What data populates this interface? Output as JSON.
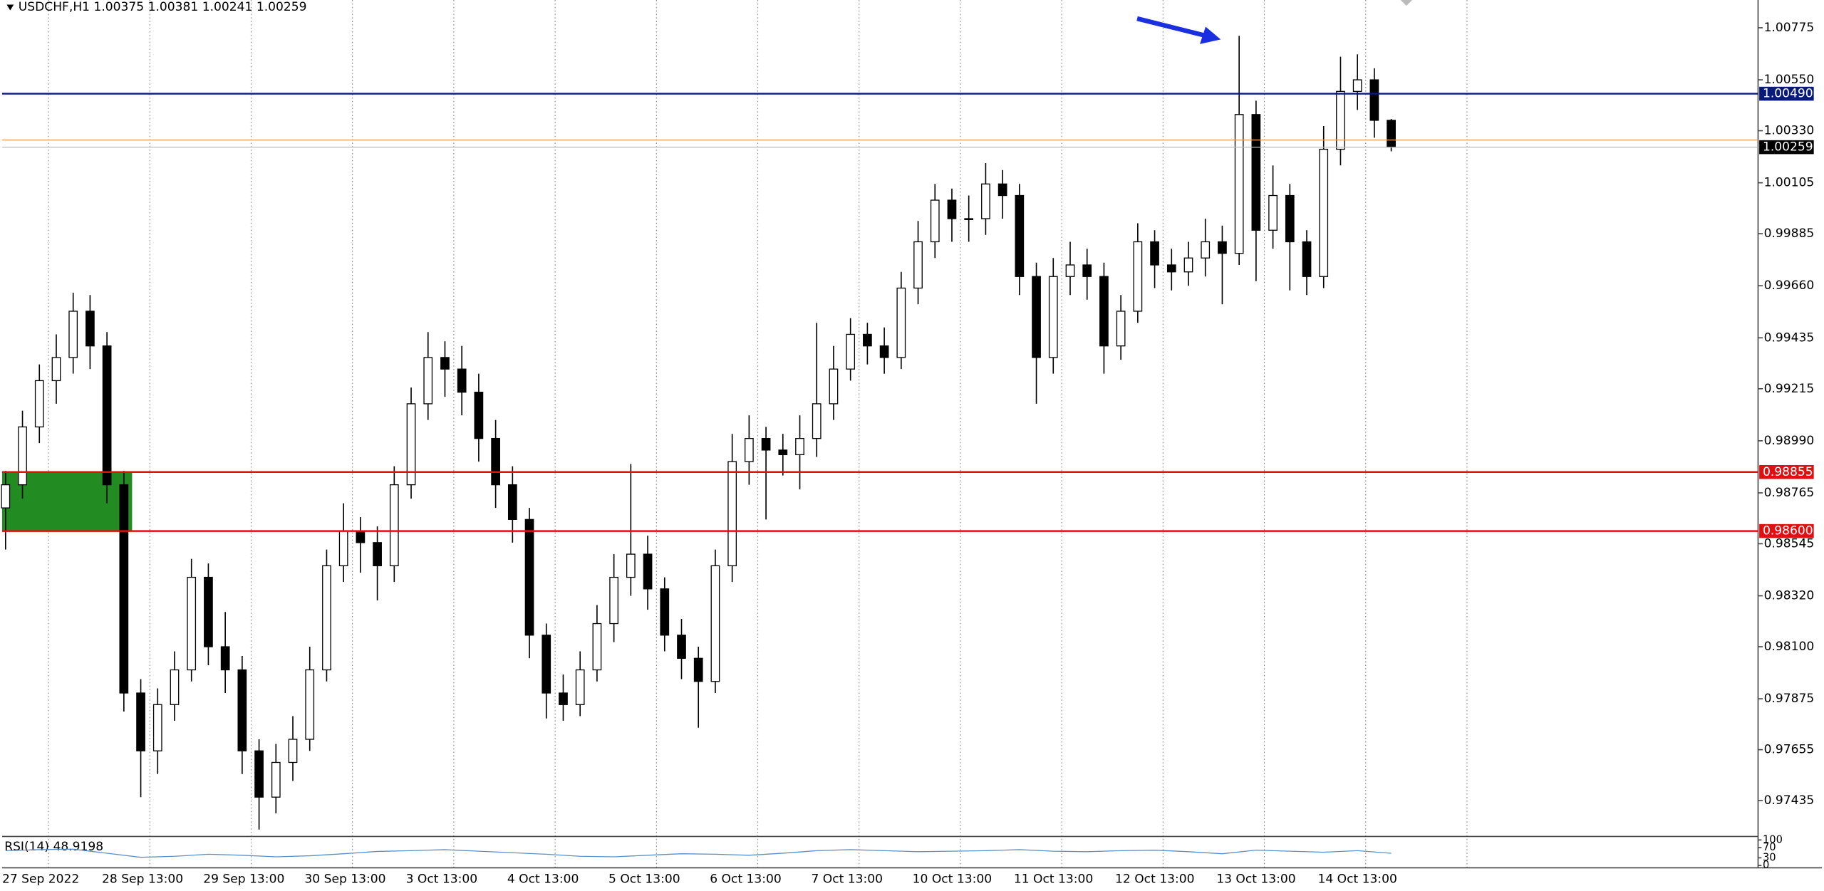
{
  "chart_data": {
    "type": "candlestick",
    "title": "USDCHF,H1",
    "categories": [
      "27 Sep 2022",
      "28 Sep 13:00",
      "29 Sep 13:00",
      "30 Sep 13:00",
      "3 Oct 13:00",
      "4 Oct 13:00",
      "5 Oct 13:00",
      "6 Oct 13:00",
      "7 Oct 13:00",
      "10 Oct 13:00",
      "11 Oct 13:00",
      "12 Oct 13:00",
      "13 Oct 13:00",
      "14 Oct 13:00"
    ],
    "open": [
      0.987,
      0.988,
      0.9905,
      0.9925,
      0.9935,
      0.9955,
      0.994,
      0.988,
      0.979,
      0.9765,
      0.9785,
      0.98,
      0.984,
      0.981,
      0.98,
      0.9765,
      0.9745,
      0.976,
      0.977,
      0.98,
      0.9845,
      0.986,
      0.9855,
      0.9845,
      0.988,
      0.9915,
      0.9935,
      0.993,
      0.992,
      0.99,
      0.988,
      0.9865,
      0.9815,
      0.979,
      0.9785,
      0.98,
      0.982,
      0.984,
      0.985,
      0.9835,
      0.9815,
      0.9805,
      0.9795,
      0.9845,
      0.989,
      0.99,
      0.9895,
      0.9893,
      0.99,
      0.9915,
      0.993,
      0.9945,
      0.994,
      0.9935,
      0.9965,
      0.9985,
      1.0003,
      0.9995,
      0.9995,
      1.001,
      1.0005,
      0.997,
      0.9935,
      0.997,
      0.9975,
      0.997,
      0.994,
      0.9955,
      0.9985,
      0.9975,
      0.9972,
      0.9978,
      0.9985,
      0.998,
      1.004,
      0.999,
      1.0005,
      0.9985,
      0.997,
      1.0025,
      1.005,
      1.0055,
      1.00375
    ],
    "high": [
      0.9886,
      0.9912,
      0.9932,
      0.9945,
      0.9963,
      0.9962,
      0.9946,
      0.9886,
      0.9796,
      0.9792,
      0.9808,
      0.9848,
      0.9846,
      0.9825,
      0.9806,
      0.977,
      0.9768,
      0.978,
      0.981,
      0.9852,
      0.9872,
      0.9866,
      0.9862,
      0.9888,
      0.9922,
      0.9946,
      0.9942,
      0.994,
      0.9928,
      0.9908,
      0.9888,
      0.987,
      0.982,
      0.9798,
      0.9808,
      0.9828,
      0.985,
      0.9889,
      0.9858,
      0.984,
      0.9822,
      0.981,
      0.9852,
      0.9902,
      0.991,
      0.9905,
      0.9902,
      0.991,
      0.995,
      0.994,
      0.9952,
      0.995,
      0.9948,
      0.9972,
      0.9994,
      1.001,
      1.0008,
      1.0005,
      1.0019,
      1.0016,
      1.001,
      0.9976,
      0.9978,
      0.9985,
      0.9982,
      0.9976,
      0.9962,
      0.9993,
      0.999,
      0.9982,
      0.9985,
      0.9995,
      0.9992,
      1.0074,
      1.0046,
      1.0018,
      1.001,
      0.999,
      1.0035,
      1.0065,
      1.0066,
      1.006,
      1.00381
    ],
    "low": [
      0.9852,
      0.9874,
      0.9898,
      0.9915,
      0.9928,
      0.993,
      0.9872,
      0.9782,
      0.9745,
      0.9755,
      0.9778,
      0.9795,
      0.9802,
      0.979,
      0.9755,
      0.9731,
      0.9738,
      0.9752,
      0.9765,
      0.9795,
      0.9838,
      0.9842,
      0.983,
      0.9838,
      0.9874,
      0.9908,
      0.9918,
      0.991,
      0.989,
      0.987,
      0.9855,
      0.9805,
      0.9779,
      0.9778,
      0.978,
      0.9795,
      0.9812,
      0.9832,
      0.9826,
      0.9808,
      0.9796,
      0.9775,
      0.979,
      0.9838,
      0.988,
      0.9865,
      0.9884,
      0.9878,
      0.9892,
      0.9908,
      0.9925,
      0.9932,
      0.9928,
      0.993,
      0.9958,
      0.9978,
      0.9985,
      0.9985,
      0.9988,
      0.9995,
      0.9962,
      0.9915,
      0.9928,
      0.9962,
      0.996,
      0.9928,
      0.9934,
      0.995,
      0.9965,
      0.9964,
      0.9966,
      0.997,
      0.9958,
      0.9975,
      0.9968,
      0.9982,
      0.9964,
      0.9962,
      0.9965,
      1.0018,
      1.0042,
      1.003,
      1.00241
    ],
    "close": [
      0.988,
      0.9905,
      0.9925,
      0.9935,
      0.9955,
      0.994,
      0.988,
      0.979,
      0.9765,
      0.9785,
      0.98,
      0.984,
      0.981,
      0.98,
      0.9765,
      0.9745,
      0.976,
      0.977,
      0.98,
      0.9845,
      0.986,
      0.9855,
      0.9845,
      0.988,
      0.9915,
      0.9935,
      0.993,
      0.992,
      0.99,
      0.988,
      0.9865,
      0.9815,
      0.979,
      0.9785,
      0.98,
      0.982,
      0.984,
      0.985,
      0.9835,
      0.9815,
      0.9805,
      0.9795,
      0.9845,
      0.989,
      0.99,
      0.9895,
      0.9893,
      0.99,
      0.9915,
      0.993,
      0.9945,
      0.994,
      0.9935,
      0.9965,
      0.9985,
      1.0003,
      0.9995,
      0.9995,
      1.001,
      1.0005,
      0.997,
      0.9935,
      0.997,
      0.9975,
      0.997,
      0.994,
      0.9955,
      0.9985,
      0.9975,
      0.9972,
      0.9978,
      0.9985,
      0.998,
      1.004,
      0.999,
      1.0005,
      0.9985,
      0.997,
      1.0025,
      1.005,
      1.0055,
      1.00375,
      1.00259
    ],
    "ylim": [
      0.97285,
      1.00895
    ],
    "yticks": [
      {
        "value": 1.00775,
        "label": "1.00775"
      },
      {
        "value": 1.0055,
        "label": "1.00550"
      },
      {
        "value": 1.0033,
        "label": "1.00330"
      },
      {
        "value": 1.00105,
        "label": "1.00105"
      },
      {
        "value": 0.99885,
        "label": "0.99885"
      },
      {
        "value": 0.9966,
        "label": "0.99660"
      },
      {
        "value": 0.99435,
        "label": "0.99435"
      },
      {
        "value": 0.99215,
        "label": "0.99215"
      },
      {
        "value": 0.9899,
        "label": "0.98990"
      },
      {
        "value": 0.98765,
        "label": "0.98765"
      },
      {
        "value": 0.98545,
        "label": "0.98545"
      },
      {
        "value": 0.9832,
        "label": "0.98320"
      },
      {
        "value": 0.981,
        "label": "0.98100"
      },
      {
        "value": 0.97875,
        "label": "0.97875"
      },
      {
        "value": 0.97655,
        "label": "0.97655"
      },
      {
        "value": 0.97435,
        "label": "0.97435"
      }
    ],
    "levels": [
      {
        "value": 1.0049,
        "label": "1.00490",
        "color": "#0a1a7a"
      },
      {
        "value": 0.98855,
        "label": "0.98855",
        "color": "#e01010"
      },
      {
        "value": 0.986,
        "label": "0.98600",
        "color": "#e01010"
      }
    ],
    "zone_color": "#228b22",
    "ask": 1.0029,
    "rsi": {
      "label": "RSI(14) 48.9198",
      "ylim": [
        0,
        100
      ],
      "yticks": [
        100,
        70,
        30,
        0
      ],
      "color": "#5b8fc7",
      "values": [
        58,
        62,
        64,
        48,
        32,
        36,
        44,
        40,
        34,
        38,
        46,
        55,
        58,
        62,
        56,
        50,
        44,
        36,
        34,
        40,
        46,
        44,
        40,
        48,
        58,
        62,
        58,
        54,
        56,
        58,
        62,
        56,
        54,
        58,
        60,
        54,
        46,
        60,
        56,
        52,
        58,
        48
      ]
    }
  }
}
